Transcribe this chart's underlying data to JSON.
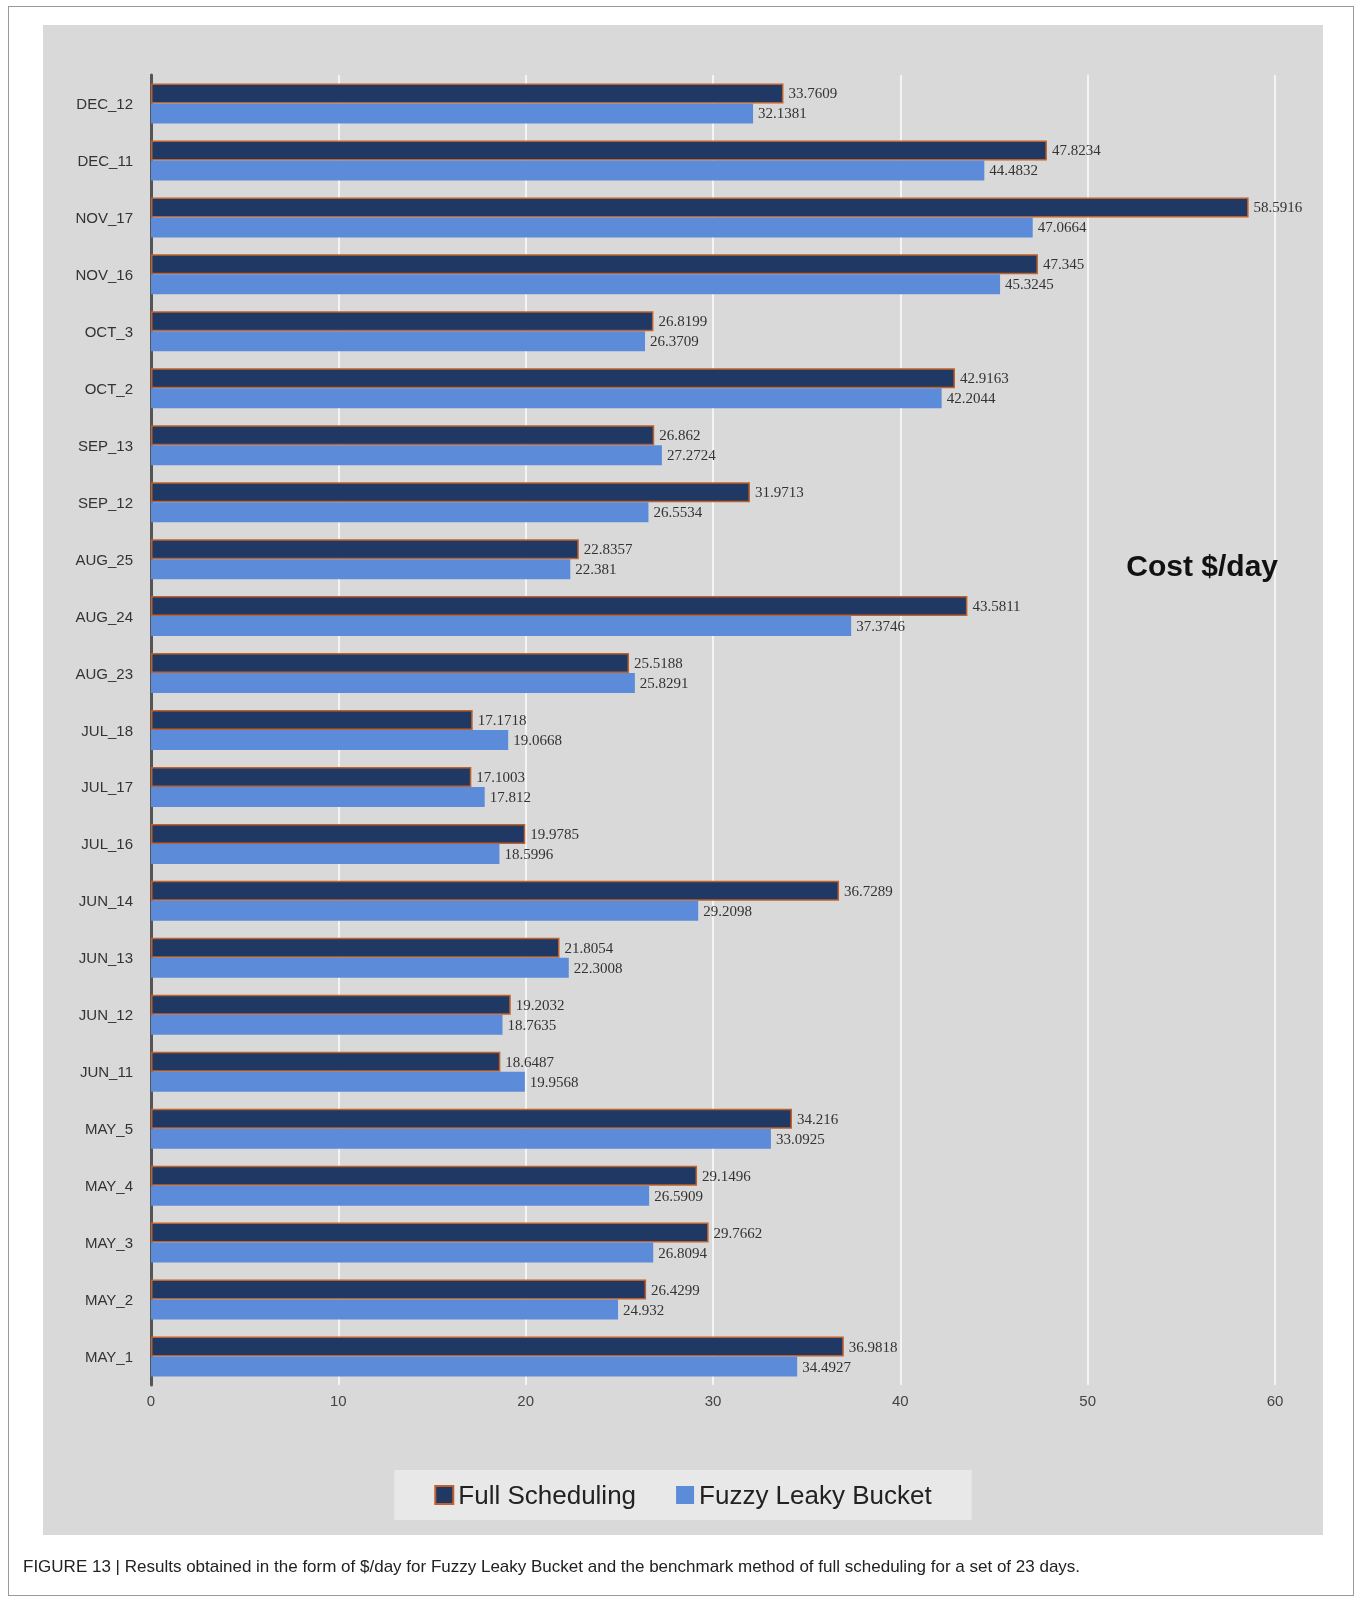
{
  "chart_data": {
    "type": "bar",
    "orientation": "horizontal",
    "title": "Cost $/day",
    "categories": [
      "DEC_12",
      "DEC_11",
      "NOV_17",
      "NOV_16",
      "OCT_3",
      "OCT_2",
      "SEP_13",
      "SEP_12",
      "AUG_25",
      "AUG_24",
      "AUG_23",
      "JUL_18",
      "JUL_17",
      "JUL_16",
      "JUN_14",
      "JUN_13",
      "JUN_12",
      "JUN_11",
      "MAY_5",
      "MAY_4",
      "MAY_3",
      "MAY_2",
      "MAY_1"
    ],
    "series": [
      {
        "name": "Full Scheduling",
        "color": "#203864",
        "values": [
          33.7609,
          47.8234,
          58.5916,
          47.345,
          26.8199,
          42.9163,
          26.862,
          31.9713,
          22.8357,
          43.5811,
          25.5188,
          17.1718,
          17.1003,
          19.9785,
          36.7289,
          21.8054,
          19.2032,
          18.6487,
          34.216,
          29.1496,
          29.7662,
          26.4299,
          36.9818
        ]
      },
      {
        "name": "Fuzzy Leaky Bucket",
        "color": "#5b8bd9",
        "values": [
          32.1381,
          44.4832,
          47.0664,
          45.3245,
          26.3709,
          42.2044,
          27.2724,
          26.5534,
          22.381,
          37.3746,
          25.8291,
          19.0668,
          17.812,
          18.5996,
          29.2098,
          22.3008,
          18.7635,
          19.9568,
          33.0925,
          26.5909,
          26.8094,
          24.932,
          34.4927
        ]
      }
    ],
    "xlim": [
      0,
      60
    ],
    "xticks": [
      0,
      10,
      20,
      30,
      40,
      50,
      60
    ],
    "grid": "x",
    "legend": "bottom",
    "data_labels": true,
    "annotations": [
      "FIGURE 13 | Results obtained in the form of $/day for Fuzzy Leaky Bucket and the benchmark method of full scheduling for a set of 23 days."
    ]
  }
}
